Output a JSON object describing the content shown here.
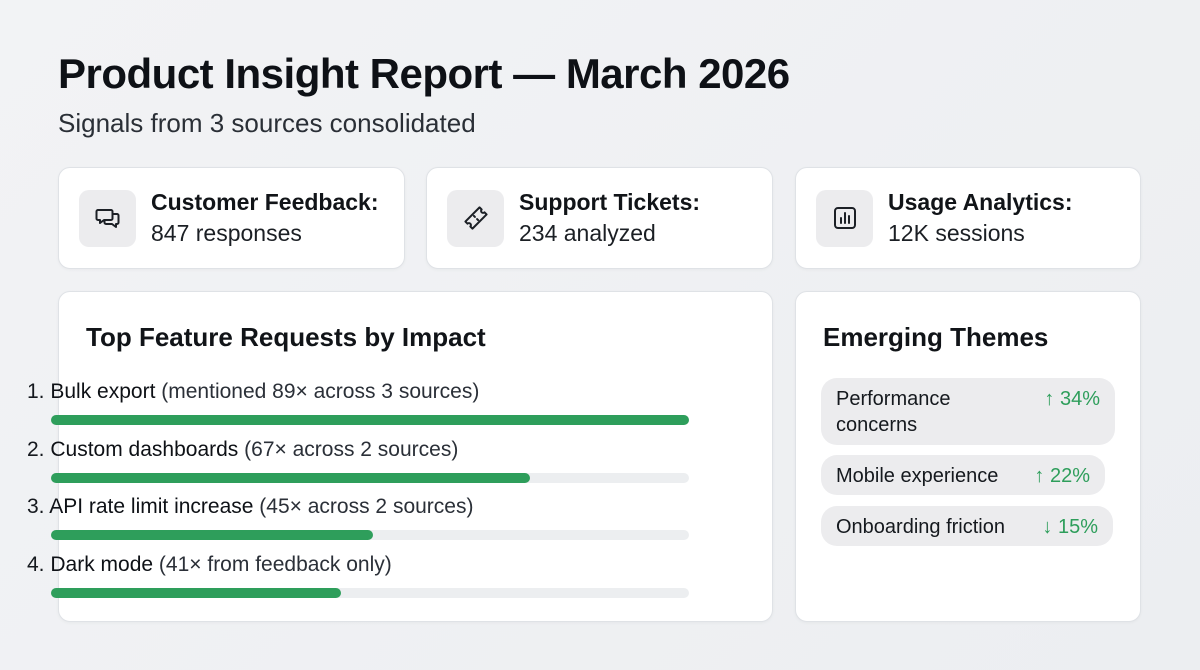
{
  "header": {
    "title": "Product Insight Report — March 2026",
    "subtitle": "Signals from 3 sources consolidated"
  },
  "sources": [
    {
      "icon": "chat-bubbles-icon",
      "label": "Customer Feedback:",
      "value": "847 responses"
    },
    {
      "icon": "ticket-icon",
      "label": "Support Tickets:",
      "value": "234 analyzed"
    },
    {
      "icon": "bar-chart-icon",
      "label": "Usage Analytics:",
      "value": "12K sessions"
    }
  ],
  "requests": {
    "title": "Top Feature Requests by Impact",
    "items": [
      {
        "rank": "1.",
        "name": "Bulk export",
        "detail": "(mentioned 89× across 3 sources)",
        "impact": 1.0
      },
      {
        "rank": "2.",
        "name": "Custom dashboards",
        "detail": "(67× across 2 sources)",
        "impact": 0.75
      },
      {
        "rank": "3.",
        "name": "API rate limit increase",
        "detail": "(45× across 2 sources)",
        "impact": 0.505
      },
      {
        "rank": "4.",
        "name": "Dark mode",
        "detail": "(41× from feedback only)",
        "impact": 0.455
      }
    ]
  },
  "themes": {
    "title": "Emerging Themes",
    "items": [
      {
        "name": "Performance concerns",
        "change": "↑ 34%"
      },
      {
        "name": "Mobile experience",
        "change": "↑ 22%"
      },
      {
        "name": "Onboarding friction",
        "change": "↓ 15%"
      }
    ]
  },
  "colors": {
    "accent_green": "#2e9e5b",
    "track": "#eceef0",
    "pill_bg": "#ececee"
  }
}
